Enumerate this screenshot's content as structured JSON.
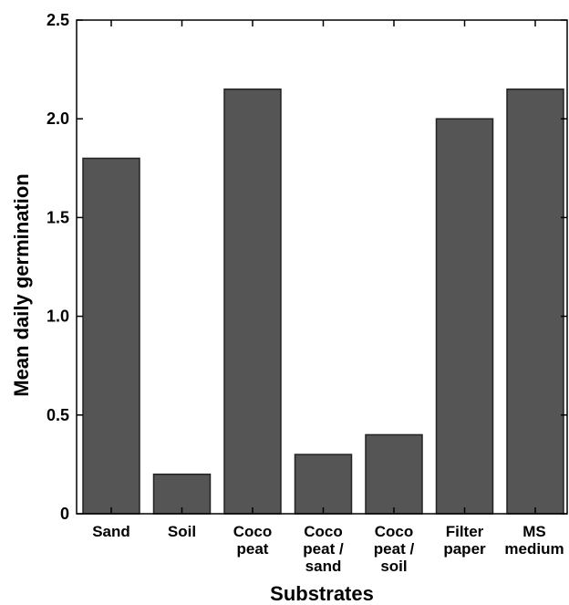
{
  "chart_data": {
    "type": "bar",
    "title": "",
    "xlabel": "Substrates",
    "ylabel": "Mean daily germination",
    "ylim": [
      0,
      2.5
    ],
    "yticks": [
      {
        "value": 0,
        "label": "0"
      },
      {
        "value": 0.5,
        "label": "0.5"
      },
      {
        "value": 1.0,
        "label": "1.0"
      },
      {
        "value": 1.5,
        "label": "1.5"
      },
      {
        "value": 2.0,
        "label": "2.0"
      },
      {
        "value": 2.5,
        "label": "2.5"
      }
    ],
    "categories": [
      [
        "Sand"
      ],
      [
        "Soil"
      ],
      [
        "Coco",
        "peat"
      ],
      [
        "Coco",
        "peat /",
        "sand"
      ],
      [
        "Coco",
        "peat /",
        "soil"
      ],
      [
        "Filter",
        "paper"
      ],
      [
        "MS",
        "medium"
      ]
    ],
    "values": [
      1.8,
      0.2,
      2.15,
      0.3,
      0.4,
      2.0,
      2.15
    ],
    "bar_color": "#555555",
    "grid": false
  }
}
